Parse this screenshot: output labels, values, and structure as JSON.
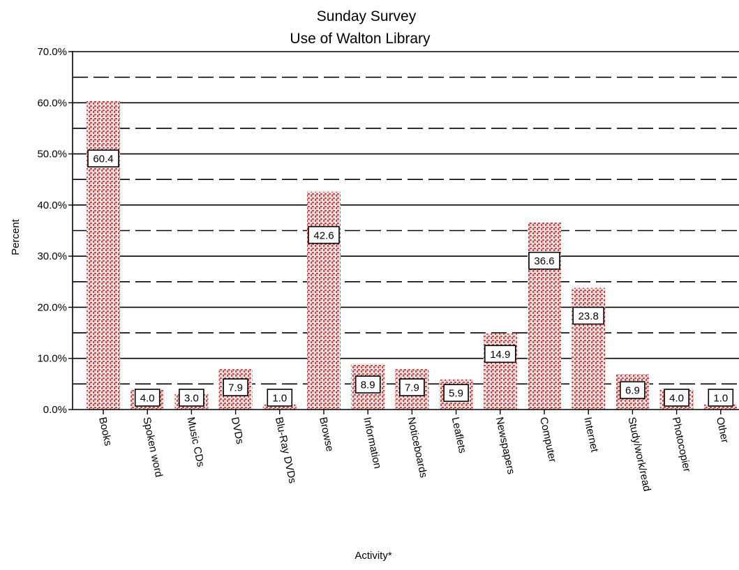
{
  "chart_data": {
    "type": "bar",
    "title": "Sunday Survey",
    "subtitle": "Use of Walton Library",
    "xlabel": "Activity*",
    "ylabel": "Percent",
    "ylim": [
      0,
      70
    ],
    "y_ticks": [
      "0.0%",
      "10.0%",
      "20.0%",
      "30.0%",
      "40.0%",
      "50.0%",
      "60.0%",
      "70.0%"
    ],
    "grid": true,
    "categories": [
      "Books",
      "Spoken word",
      "Music CDs",
      "DVDs",
      "Blu-Ray DVDs",
      "Browse",
      "Information",
      "Noticeboards",
      "Leaflets",
      "Newspapers",
      "Computer",
      "Internet",
      "Study/work/read",
      "Photocopier",
      "Other"
    ],
    "values": [
      60.4,
      4.0,
      3.0,
      7.9,
      1.0,
      42.6,
      8.9,
      7.9,
      5.9,
      14.9,
      36.6,
      23.8,
      6.9,
      4.0,
      1.0
    ],
    "value_labels": [
      "60.4",
      "4.0",
      "3.0",
      "7.9",
      "1.0",
      "42.6",
      "8.9",
      "7.9",
      "5.9",
      "14.9",
      "36.6",
      "23.8",
      "6.9",
      "4.0",
      "1.0"
    ],
    "colors": {
      "bar": "#e23b3b",
      "bar_pattern": "#ffffff",
      "grid": "#000000"
    }
  }
}
